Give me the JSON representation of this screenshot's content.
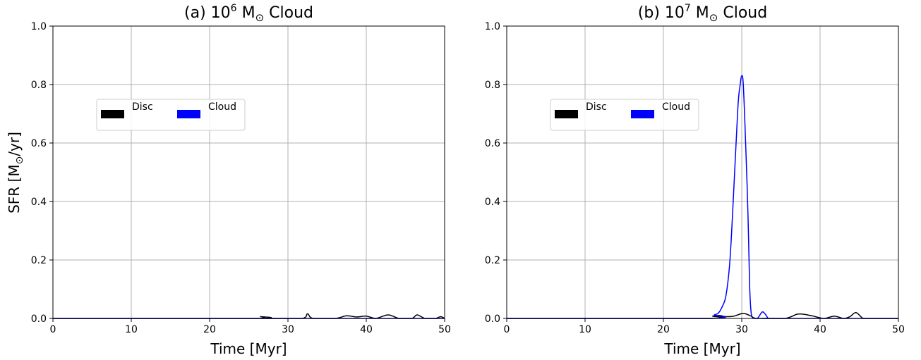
{
  "figure": {
    "ylabel_main": "SFR [M",
    "ylabel_sub": "⊙",
    "ylabel_tail": "/yr]"
  },
  "chart_data": [
    {
      "type": "line",
      "title_prefix": "(a) 10",
      "title_exp": "6",
      "title_suffix": " M",
      "title_sub": "⊙",
      "title_tail": " Cloud",
      "xlabel": "Time [Myr]",
      "ylabel": "SFR [M⊙/yr]",
      "xlim": [
        0,
        50
      ],
      "ylim": [
        0,
        1.0
      ],
      "xticks": [
        "0",
        "10",
        "20",
        "30",
        "40",
        "50"
      ],
      "yticks": [
        "0.0",
        "0.2",
        "0.4",
        "0.6",
        "0.8",
        "1.0"
      ],
      "grid": true,
      "legend": {
        "placement": "upper-left",
        "entries": [
          "Disc",
          "Cloud"
        ]
      },
      "series": [
        {
          "name": "Disc",
          "color": "#000000",
          "x": [
            0,
            25.8,
            26.5,
            27.2,
            27.8,
            31.8,
            32.5,
            33.2,
            36.0,
            37.5,
            38.8,
            40.0,
            41.2,
            42.8,
            44.2,
            45.8,
            46.5,
            47.5,
            48.8,
            49.5,
            50.0
          ],
          "y": [
            0,
            0,
            0.006,
            0,
            0,
            0,
            0.016,
            0,
            0,
            0.009,
            0.005,
            0.008,
            0,
            0.012,
            0,
            0,
            0.012,
            0,
            0,
            0.006,
            0
          ]
        },
        {
          "name": "Cloud",
          "color": "#0000ff",
          "x": [
            0,
            50
          ],
          "y": [
            0,
            0
          ]
        }
      ]
    },
    {
      "type": "line",
      "title_prefix": "(b) 10",
      "title_exp": "7",
      "title_suffix": " M",
      "title_sub": "⊙",
      "title_tail": " Cloud",
      "xlabel": "Time [Myr]",
      "ylabel": "",
      "xlim": [
        0,
        50
      ],
      "ylim": [
        0,
        1.0
      ],
      "xticks": [
        "0",
        "10",
        "20",
        "30",
        "40",
        "50"
      ],
      "yticks": [
        "0.0",
        "0.2",
        "0.4",
        "0.6",
        "0.8",
        "1.0"
      ],
      "grid": true,
      "legend": {
        "placement": "upper-left",
        "entries": [
          "Disc",
          "Cloud"
        ]
      },
      "series": [
        {
          "name": "Disc",
          "color": "#000000",
          "x": [
            0,
            25.5,
            26.3,
            27.2,
            28.0,
            29.0,
            30.2,
            31.2,
            32.0,
            35.5,
            37.2,
            38.8,
            40.5,
            41.8,
            43.0,
            43.8,
            44.6,
            45.5,
            46.5,
            50.0
          ],
          "y": [
            0,
            0,
            0.008,
            0.01,
            0.006,
            0.008,
            0.017,
            0.008,
            0,
            0,
            0.015,
            0.01,
            0,
            0.008,
            0,
            0.006,
            0.02,
            0,
            0,
            0
          ]
        },
        {
          "name": "Cloud",
          "color": "#0000ff",
          "x": [
            0,
            25.8,
            26.5,
            27.0,
            27.5,
            28.0,
            28.5,
            29.0,
            29.5,
            29.8,
            30.0,
            30.2,
            30.5,
            30.8,
            31.0,
            31.2,
            31.5,
            32.0,
            32.6,
            33.0,
            33.4,
            34.0,
            50.0
          ],
          "y": [
            0,
            0,
            0.012,
            0.018,
            0.04,
            0.08,
            0.2,
            0.45,
            0.72,
            0.8,
            0.83,
            0.8,
            0.6,
            0.35,
            0.12,
            0.02,
            0,
            0,
            0.022,
            0.015,
            0,
            0,
            0
          ]
        }
      ]
    }
  ]
}
